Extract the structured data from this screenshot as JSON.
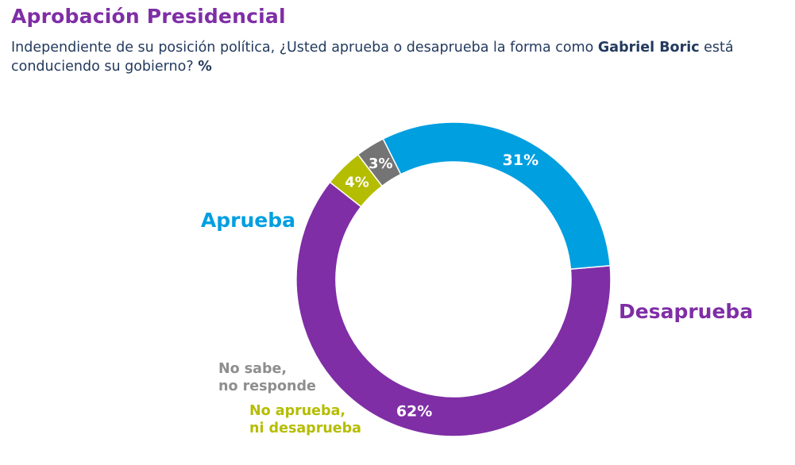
{
  "title": "Aprobación Presidencial",
  "subtitle": {
    "part1": "Independiente de su posición política, ¿Usted aprueba o desaprueba la forma como ",
    "name": "Gabriel Boric",
    "part2": " está conduciendo su gobierno? ",
    "unit": "%"
  },
  "chart_data": {
    "type": "pie",
    "donut": true,
    "categories": [
      "Desaprueba",
      "No aprueba, ni desaprueba",
      "No sabe, no responde",
      "Aprueba"
    ],
    "values": [
      62,
      4,
      3,
      31
    ],
    "value_labels": [
      "62%",
      "4%",
      "3%",
      "31%"
    ],
    "legend_lines": [
      [
        "Desaprueba"
      ],
      [
        "No aprueba,",
        "ni desaprueba"
      ],
      [
        "No sabe,",
        "no responde"
      ],
      [
        "Aprueba"
      ]
    ],
    "colors": [
      "#7f2ea6",
      "#b5bd00",
      "#747474",
      "#009fe0"
    ],
    "legend_colors": [
      "#7f2ea6",
      "#b5bd00",
      "#8e8e8e",
      "#009fe0"
    ]
  }
}
